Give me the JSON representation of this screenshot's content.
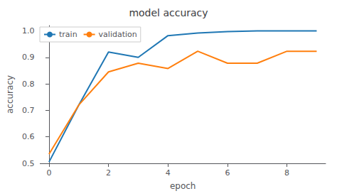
{
  "chart_data": {
    "type": "line",
    "title": "model accuracy",
    "xlabel": "epoch",
    "ylabel": "accuracy",
    "x": [
      0,
      1,
      2,
      3,
      4,
      5,
      6,
      7,
      8,
      9
    ],
    "series": [
      {
        "name": "train",
        "color": "#1f77b4",
        "values": [
          0.505,
          0.72,
          0.92,
          0.9,
          0.982,
          0.992,
          0.997,
          1.0,
          1.0,
          1.0
        ]
      },
      {
        "name": "validation",
        "color": "#ff7f0e",
        "values": [
          0.535,
          0.72,
          0.845,
          0.878,
          0.858,
          0.923,
          0.878,
          0.878,
          0.923,
          0.923
        ]
      }
    ],
    "xlim": [
      -0.3,
      9.3
    ],
    "xticks": [
      0,
      2,
      4,
      6,
      8
    ],
    "ylim": [
      0.5,
      1.02
    ],
    "yticks": [
      0.5,
      0.6,
      0.7,
      0.8,
      0.9,
      {
        "value": 1.0,
        "label": "1.0"
      }
    ],
    "grid": false,
    "legend": "upper left"
  }
}
